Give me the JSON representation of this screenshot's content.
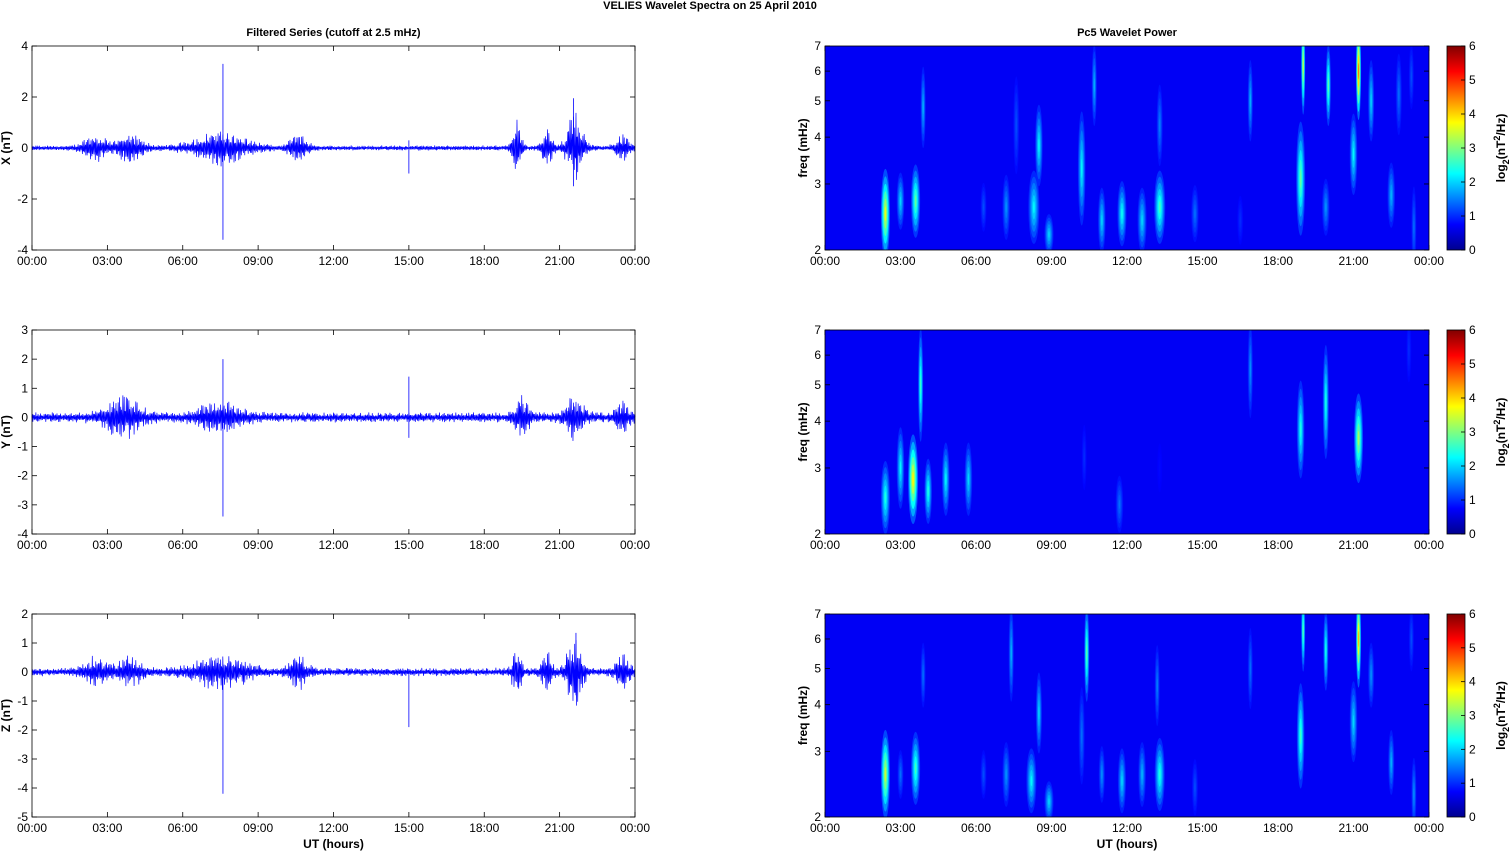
{
  "figure": {
    "title": "VELIES Wavelet Spectra on 25 April     2010"
  },
  "chart_data": [
    {
      "type": "line",
      "panel": "left-top",
      "title": "Filtered Series (cutoff at 2.5 mHz)",
      "xlabel": "",
      "ylabel": "X (nT)",
      "xticks": [
        "00:00",
        "03:00",
        "06:00",
        "09:00",
        "12:00",
        "15:00",
        "18:00",
        "21:00",
        "00:00"
      ],
      "xlim": [
        0,
        24
      ],
      "ylim": [
        -4,
        4
      ],
      "yticks": [
        -4,
        -2,
        0,
        2,
        4
      ],
      "series": [
        {
          "color": "#0000ff",
          "base_amplitude": 0.07,
          "bursts": [
            {
              "t": 2.5,
              "amp": 0.35,
              "width": 0.5
            },
            {
              "t": 3.9,
              "amp": 0.35,
              "width": 0.6
            },
            {
              "t": 7.5,
              "amp": 0.45,
              "width": 1.2
            },
            {
              "t": 10.6,
              "amp": 0.35,
              "width": 0.4
            },
            {
              "t": 19.3,
              "amp": 0.8,
              "width": 0.2
            },
            {
              "t": 20.5,
              "amp": 0.5,
              "width": 0.25
            },
            {
              "t": 21.6,
              "amp": 1.1,
              "width": 0.35
            },
            {
              "t": 23.5,
              "amp": 0.35,
              "width": 0.3
            }
          ],
          "spikes": [
            {
              "t": 7.6,
              "max": 3.3,
              "min": -3.6
            },
            {
              "t": 15.0,
              "max": 0.3,
              "min": -1.0
            },
            {
              "t": 21.55,
              "max": 1.95,
              "min": -1.5
            }
          ]
        }
      ]
    },
    {
      "type": "line",
      "panel": "left-middle",
      "title": "",
      "xlabel": "",
      "ylabel": "Y (nT)",
      "xticks": [
        "00:00",
        "03:00",
        "06:00",
        "09:00",
        "12:00",
        "15:00",
        "18:00",
        "21:00",
        "00:00"
      ],
      "xlim": [
        0,
        24
      ],
      "ylim": [
        -4,
        3
      ],
      "yticks": [
        -4,
        -3,
        -2,
        -1,
        0,
        1,
        2,
        3
      ],
      "series": [
        {
          "color": "#0000ff",
          "base_amplitude": 0.12,
          "bursts": [
            {
              "t": 3.6,
              "amp": 0.45,
              "width": 0.8
            },
            {
              "t": 7.5,
              "amp": 0.3,
              "width": 1.0
            },
            {
              "t": 19.5,
              "amp": 0.45,
              "width": 0.3
            },
            {
              "t": 21.6,
              "amp": 0.45,
              "width": 0.4
            },
            {
              "t": 23.5,
              "amp": 0.3,
              "width": 0.3
            }
          ],
          "spikes": [
            {
              "t": 7.6,
              "max": 2.0,
              "min": -3.4
            },
            {
              "t": 15.0,
              "max": 1.4,
              "min": -0.7
            }
          ]
        }
      ]
    },
    {
      "type": "line",
      "panel": "left-bottom",
      "title": "",
      "xlabel": "UT (hours)",
      "ylabel": "Z (nT)",
      "xticks": [
        "00:00",
        "03:00",
        "06:00",
        "09:00",
        "12:00",
        "15:00",
        "18:00",
        "21:00",
        "00:00"
      ],
      "xlim": [
        0,
        24
      ],
      "ylim": [
        -5,
        2
      ],
      "yticks": [
        -5,
        -4,
        -3,
        -2,
        -1,
        0,
        1,
        2
      ],
      "series": [
        {
          "color": "#0000ff",
          "base_amplitude": 0.1,
          "bursts": [
            {
              "t": 2.5,
              "amp": 0.3,
              "width": 0.5
            },
            {
              "t": 3.9,
              "amp": 0.3,
              "width": 0.6
            },
            {
              "t": 7.5,
              "amp": 0.35,
              "width": 1.2
            },
            {
              "t": 10.6,
              "amp": 0.35,
              "width": 0.4
            },
            {
              "t": 19.3,
              "amp": 0.6,
              "width": 0.2
            },
            {
              "t": 20.5,
              "amp": 0.4,
              "width": 0.25
            },
            {
              "t": 21.6,
              "amp": 0.8,
              "width": 0.35
            },
            {
              "t": 23.5,
              "amp": 0.4,
              "width": 0.3
            }
          ],
          "spikes": [
            {
              "t": 7.6,
              "max": 0.2,
              "min": -4.2
            },
            {
              "t": 15.0,
              "max": 0.1,
              "min": -1.9
            },
            {
              "t": 21.65,
              "max": 1.35,
              "min": -0.8
            }
          ]
        }
      ]
    },
    {
      "type": "heatmap",
      "panel": "right-top",
      "title": "Pc5 Wavelet Power",
      "xlabel": "",
      "ylabel": "freq (mHz)",
      "xticks": [
        "00:00",
        "03:00",
        "06:00",
        "09:00",
        "12:00",
        "15:00",
        "18:00",
        "21:00",
        "00:00"
      ],
      "xlim": [
        0,
        24
      ],
      "ylim": [
        2,
        7
      ],
      "yscale": "log",
      "yticks": [
        2,
        3,
        4,
        5,
        6,
        7
      ],
      "colorbar": {
        "label": "log2(nT^2/Hz)",
        "range": [
          0,
          6
        ],
        "ticks": [
          0,
          1,
          2,
          3,
          4,
          5,
          6
        ],
        "colormap": "jet"
      },
      "blobs": [
        {
          "t": 2.4,
          "f": 2.5,
          "w": 0.18,
          "h": 0.55,
          "v": 3.6
        },
        {
          "t": 3.0,
          "f": 2.7,
          "w": 0.15,
          "h": 0.35,
          "v": 2.0
        },
        {
          "t": 3.6,
          "f": 2.7,
          "w": 0.18,
          "h": 0.45,
          "v": 2.8
        },
        {
          "t": 3.9,
          "f": 4.8,
          "w": 0.1,
          "h": 0.5,
          "v": 1.8
        },
        {
          "t": 6.3,
          "f": 2.6,
          "w": 0.12,
          "h": 0.3,
          "v": 1.2
        },
        {
          "t": 7.2,
          "f": 2.6,
          "w": 0.15,
          "h": 0.4,
          "v": 1.6
        },
        {
          "t": 7.6,
          "f": 4.3,
          "w": 0.12,
          "h": 0.6,
          "v": 1.2
        },
        {
          "t": 8.3,
          "f": 2.6,
          "w": 0.22,
          "h": 0.45,
          "v": 2.2
        },
        {
          "t": 8.5,
          "f": 3.8,
          "w": 0.15,
          "h": 0.5,
          "v": 2.2
        },
        {
          "t": 8.9,
          "f": 2.2,
          "w": 0.18,
          "h": 0.25,
          "v": 2.0
        },
        {
          "t": 10.2,
          "f": 3.3,
          "w": 0.15,
          "h": 0.7,
          "v": 2.2
        },
        {
          "t": 10.7,
          "f": 5.5,
          "w": 0.1,
          "h": 0.5,
          "v": 1.8
        },
        {
          "t": 11.0,
          "f": 2.4,
          "w": 0.15,
          "h": 0.4,
          "v": 2.0
        },
        {
          "t": 11.8,
          "f": 2.5,
          "w": 0.18,
          "h": 0.4,
          "v": 2.3
        },
        {
          "t": 12.6,
          "f": 2.4,
          "w": 0.18,
          "h": 0.4,
          "v": 2.0
        },
        {
          "t": 13.3,
          "f": 2.6,
          "w": 0.22,
          "h": 0.45,
          "v": 2.6
        },
        {
          "t": 13.3,
          "f": 4.3,
          "w": 0.12,
          "h": 0.5,
          "v": 1.5
        },
        {
          "t": 14.7,
          "f": 2.5,
          "w": 0.15,
          "h": 0.35,
          "v": 1.4
        },
        {
          "t": 16.5,
          "f": 2.4,
          "w": 0.12,
          "h": 0.3,
          "v": 1.0
        },
        {
          "t": 16.9,
          "f": 5.0,
          "w": 0.1,
          "h": 0.5,
          "v": 1.8
        },
        {
          "t": 18.9,
          "f": 3.1,
          "w": 0.18,
          "h": 0.7,
          "v": 2.8
        },
        {
          "t": 19.0,
          "f": 6.2,
          "w": 0.08,
          "h": 0.6,
          "v": 3.5
        },
        {
          "t": 19.9,
          "f": 2.6,
          "w": 0.15,
          "h": 0.35,
          "v": 1.6
        },
        {
          "t": 20.0,
          "f": 5.5,
          "w": 0.1,
          "h": 0.5,
          "v": 2.8
        },
        {
          "t": 21.0,
          "f": 3.6,
          "w": 0.15,
          "h": 0.5,
          "v": 2.2
        },
        {
          "t": 21.2,
          "f": 6.0,
          "w": 0.1,
          "h": 0.6,
          "v": 4.6
        },
        {
          "t": 21.7,
          "f": 5.0,
          "w": 0.12,
          "h": 0.5,
          "v": 2.0
        },
        {
          "t": 22.5,
          "f": 2.8,
          "w": 0.15,
          "h": 0.4,
          "v": 1.8
        },
        {
          "t": 22.8,
          "f": 5.2,
          "w": 0.12,
          "h": 0.5,
          "v": 1.4
        },
        {
          "t": 23.4,
          "f": 2.3,
          "w": 0.1,
          "h": 0.5,
          "v": 1.4
        },
        {
          "t": 23.3,
          "f": 5.8,
          "w": 0.1,
          "h": 0.4,
          "v": 1.2
        }
      ]
    },
    {
      "type": "heatmap",
      "panel": "right-middle",
      "title": "",
      "xlabel": "",
      "ylabel": "freq (mHz)",
      "xticks": [
        "00:00",
        "03:00",
        "06:00",
        "09:00",
        "12:00",
        "15:00",
        "18:00",
        "21:00",
        "00:00"
      ],
      "xlim": [
        0,
        24
      ],
      "ylim": [
        2,
        7
      ],
      "yscale": "log",
      "yticks": [
        2,
        3,
        4,
        5,
        6,
        7
      ],
      "colorbar": {
        "label": "log2(nT^2/Hz)",
        "range": [
          0,
          6
        ],
        "ticks": [
          0,
          1,
          2,
          3,
          4,
          5,
          6
        ],
        "colormap": "jet"
      },
      "blobs": [
        {
          "t": 2.4,
          "f": 2.5,
          "w": 0.18,
          "h": 0.45,
          "v": 2.4
        },
        {
          "t": 3.0,
          "f": 3.0,
          "w": 0.15,
          "h": 0.5,
          "v": 2.2
        },
        {
          "t": 3.5,
          "f": 2.8,
          "w": 0.2,
          "h": 0.55,
          "v": 3.8
        },
        {
          "t": 3.8,
          "f": 5.0,
          "w": 0.1,
          "h": 0.7,
          "v": 2.6
        },
        {
          "t": 4.1,
          "f": 2.6,
          "w": 0.15,
          "h": 0.4,
          "v": 2.4
        },
        {
          "t": 4.8,
          "f": 2.8,
          "w": 0.15,
          "h": 0.45,
          "v": 2.2
        },
        {
          "t": 5.7,
          "f": 2.8,
          "w": 0.15,
          "h": 0.45,
          "v": 2.0
        },
        {
          "t": 10.3,
          "f": 3.2,
          "w": 0.1,
          "h": 0.4,
          "v": 1.0
        },
        {
          "t": 11.7,
          "f": 2.4,
          "w": 0.15,
          "h": 0.35,
          "v": 1.4
        },
        {
          "t": 13.3,
          "f": 3.0,
          "w": 0.1,
          "h": 0.3,
          "v": 0.8
        },
        {
          "t": 16.9,
          "f": 5.5,
          "w": 0.1,
          "h": 0.6,
          "v": 1.6
        },
        {
          "t": 18.9,
          "f": 3.8,
          "w": 0.15,
          "h": 0.6,
          "v": 2.4
        },
        {
          "t": 19.9,
          "f": 4.5,
          "w": 0.12,
          "h": 0.7,
          "v": 2.4
        },
        {
          "t": 21.2,
          "f": 3.6,
          "w": 0.18,
          "h": 0.55,
          "v": 3.2
        },
        {
          "t": 23.2,
          "f": 6.2,
          "w": 0.1,
          "h": 0.4,
          "v": 1.0
        }
      ]
    },
    {
      "type": "heatmap",
      "panel": "right-bottom",
      "title": "",
      "xlabel": "UT (hours)",
      "ylabel": "freq (mHz)",
      "xticks": [
        "00:00",
        "03:00",
        "06:00",
        "09:00",
        "12:00",
        "15:00",
        "18:00",
        "21:00",
        "00:00"
      ],
      "xlim": [
        0,
        24
      ],
      "ylim": [
        2,
        7
      ],
      "yscale": "log",
      "yticks": [
        2,
        3,
        4,
        5,
        6,
        7
      ],
      "colorbar": {
        "label": "log2(nT^2/Hz)",
        "range": [
          0,
          6
        ],
        "ticks": [
          0,
          1,
          2,
          3,
          4,
          5,
          6
        ],
        "colormap": "jet"
      },
      "blobs": [
        {
          "t": 2.4,
          "f": 2.6,
          "w": 0.18,
          "h": 0.55,
          "v": 3.4
        },
        {
          "t": 3.0,
          "f": 2.6,
          "w": 0.12,
          "h": 0.3,
          "v": 1.4
        },
        {
          "t": 3.6,
          "f": 2.7,
          "w": 0.18,
          "h": 0.45,
          "v": 2.6
        },
        {
          "t": 3.9,
          "f": 4.8,
          "w": 0.1,
          "h": 0.4,
          "v": 1.4
        },
        {
          "t": 6.3,
          "f": 2.6,
          "w": 0.12,
          "h": 0.3,
          "v": 1.2
        },
        {
          "t": 7.2,
          "f": 2.6,
          "w": 0.15,
          "h": 0.4,
          "v": 1.6
        },
        {
          "t": 7.4,
          "f": 5.5,
          "w": 0.1,
          "h": 0.6,
          "v": 1.8
        },
        {
          "t": 8.2,
          "f": 2.5,
          "w": 0.2,
          "h": 0.4,
          "v": 2.2
        },
        {
          "t": 8.5,
          "f": 3.8,
          "w": 0.12,
          "h": 0.5,
          "v": 2.0
        },
        {
          "t": 8.9,
          "f": 2.2,
          "w": 0.18,
          "h": 0.25,
          "v": 2.0
        },
        {
          "t": 10.2,
          "f": 3.3,
          "w": 0.12,
          "h": 0.6,
          "v": 1.4
        },
        {
          "t": 10.4,
          "f": 5.5,
          "w": 0.1,
          "h": 0.6,
          "v": 2.8
        },
        {
          "t": 11.0,
          "f": 2.6,
          "w": 0.12,
          "h": 0.35,
          "v": 1.6
        },
        {
          "t": 11.8,
          "f": 2.5,
          "w": 0.16,
          "h": 0.4,
          "v": 2.0
        },
        {
          "t": 12.6,
          "f": 2.6,
          "w": 0.15,
          "h": 0.4,
          "v": 1.8
        },
        {
          "t": 13.3,
          "f": 2.6,
          "w": 0.2,
          "h": 0.45,
          "v": 2.4
        },
        {
          "t": 13.2,
          "f": 4.5,
          "w": 0.1,
          "h": 0.5,
          "v": 1.5
        },
        {
          "t": 14.7,
          "f": 2.4,
          "w": 0.12,
          "h": 0.35,
          "v": 1.2
        },
        {
          "t": 16.9,
          "f": 5.0,
          "w": 0.1,
          "h": 0.5,
          "v": 1.4
        },
        {
          "t": 18.9,
          "f": 3.3,
          "w": 0.15,
          "h": 0.65,
          "v": 2.6
        },
        {
          "t": 19.0,
          "f": 6.3,
          "w": 0.08,
          "h": 0.5,
          "v": 2.8
        },
        {
          "t": 19.9,
          "f": 5.6,
          "w": 0.1,
          "h": 0.5,
          "v": 2.4
        },
        {
          "t": 21.0,
          "f": 3.6,
          "w": 0.15,
          "h": 0.5,
          "v": 2.0
        },
        {
          "t": 21.2,
          "f": 6.0,
          "w": 0.1,
          "h": 0.6,
          "v": 4.2
        },
        {
          "t": 21.7,
          "f": 4.8,
          "w": 0.12,
          "h": 0.4,
          "v": 1.6
        },
        {
          "t": 22.5,
          "f": 2.8,
          "w": 0.12,
          "h": 0.4,
          "v": 1.8
        },
        {
          "t": 23.4,
          "f": 2.3,
          "w": 0.1,
          "h": 0.45,
          "v": 1.6
        },
        {
          "t": 23.3,
          "f": 6.0,
          "w": 0.1,
          "h": 0.4,
          "v": 1.2
        }
      ]
    }
  ]
}
